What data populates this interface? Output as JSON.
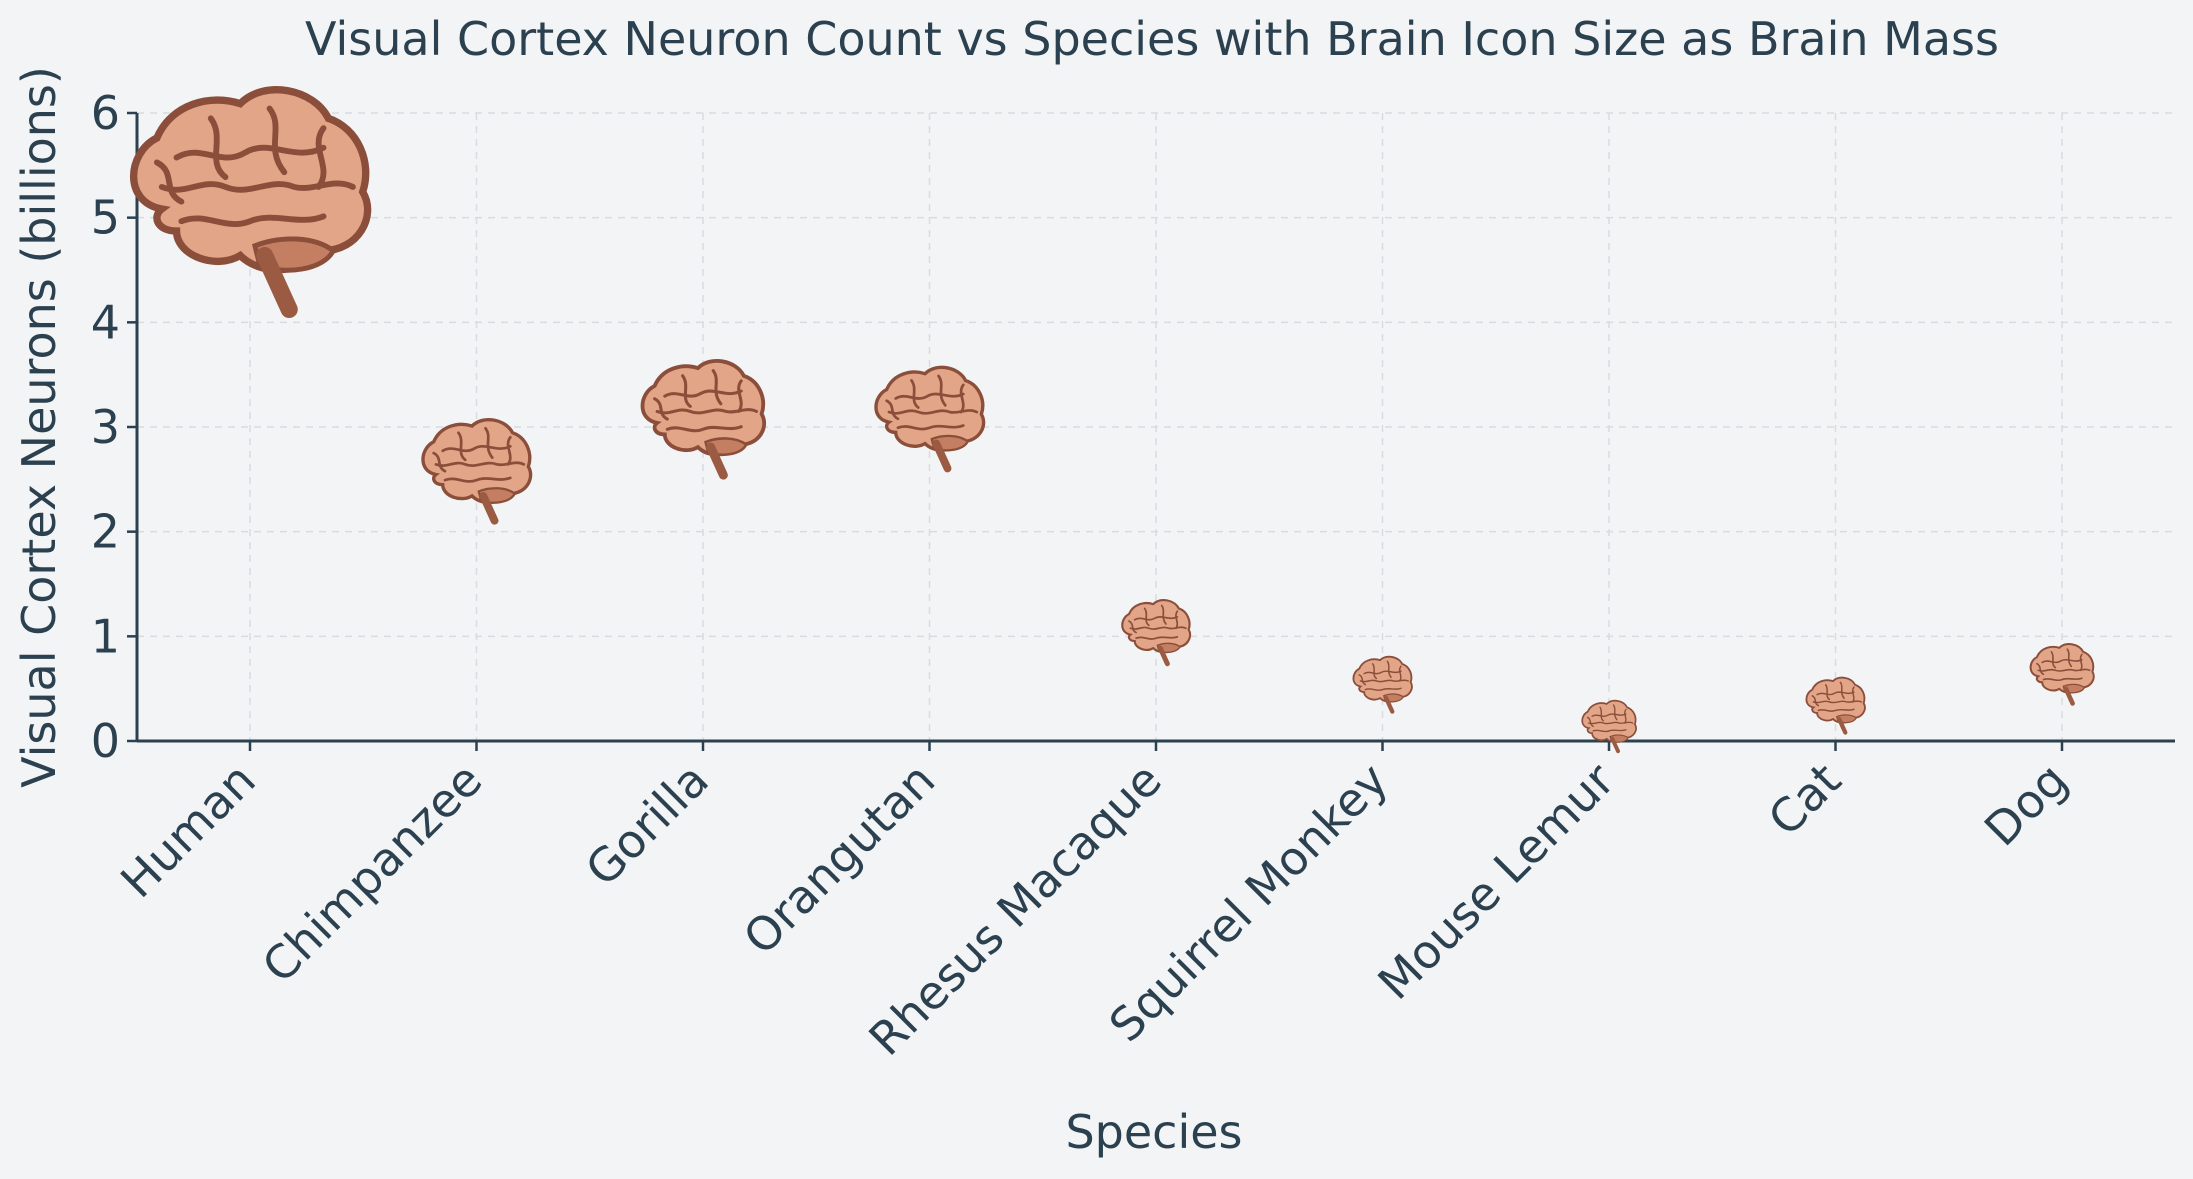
{
  "chart_data": {
    "type": "scatter",
    "title": "Visual Cortex Neuron Count vs Species with Brain Icon Size as Brain Mass",
    "xlabel": "Species",
    "ylabel": "Visual Cortex Neurons (billions)",
    "categories": [
      "Human",
      "Chimpanzee",
      "Gorilla",
      "Orangutan",
      "Rhesus Macaque",
      "Squirrel Monkey",
      "Mouse Lemur",
      "Cat",
      "Dog"
    ],
    "values": [
      5.2,
      2.6,
      3.1,
      3.1,
      1.05,
      0.55,
      0.15,
      0.35,
      0.65
    ],
    "ylim": [
      0,
      6
    ],
    "yticks": [
      "0",
      "1",
      "2",
      "3",
      "4",
      "5",
      "6"
    ],
    "marker": "brain-icon",
    "marker_size_encodes": "Brain Mass",
    "marker_relative_size": [
      1.0,
      0.46,
      0.52,
      0.46,
      0.29,
      0.25,
      0.23,
      0.25,
      0.27
    ],
    "grid": true,
    "colors": {
      "background": "#f3f4f6",
      "text": "#2b4150",
      "grid": "#d8dbe0",
      "brain_fill": "#e2a587",
      "brain_shade": "#c47f62",
      "brain_line": "#8a4e3a"
    }
  }
}
